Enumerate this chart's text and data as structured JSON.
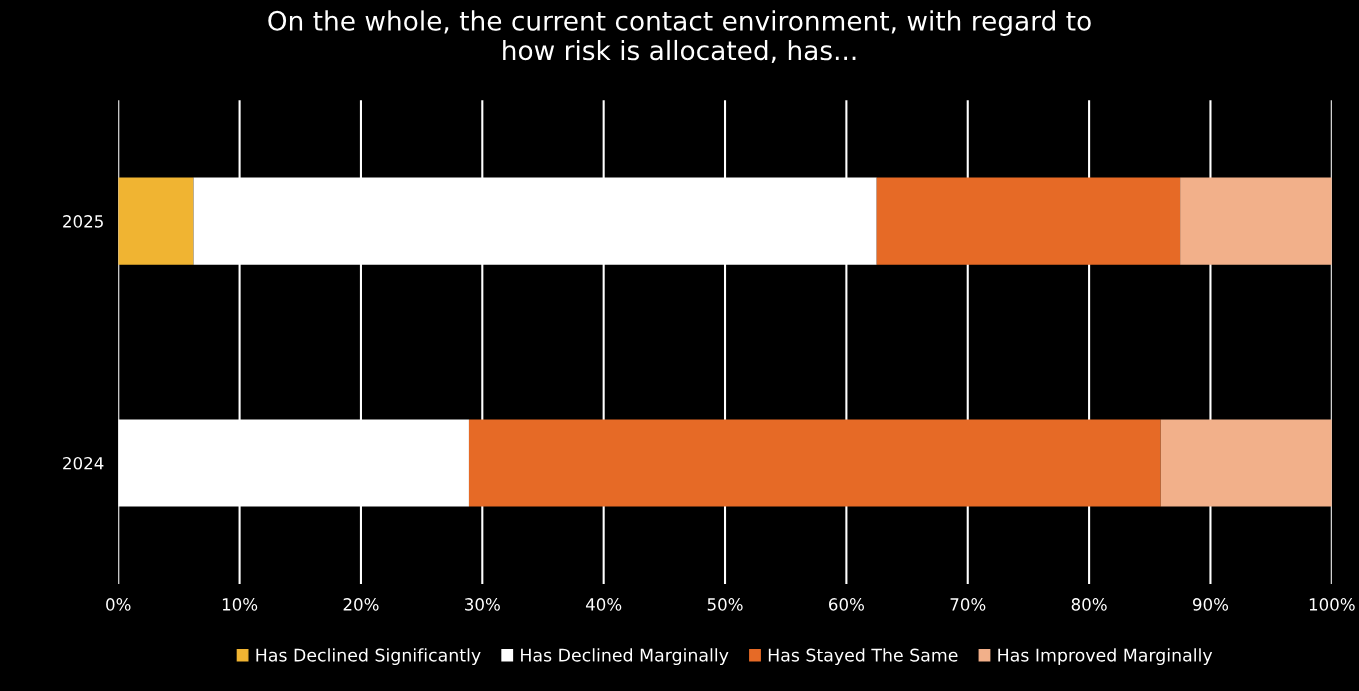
{
  "chart_data": {
    "type": "bar",
    "orientation": "horizontal",
    "stacked": true,
    "title": "On the whole, the current contact environment, with regard to\nhow risk is allocated, has...",
    "categories": [
      "2025",
      "2024"
    ],
    "series": [
      {
        "name": "Has Declined Significantly",
        "color": "#f0b432",
        "values": [
          6.2,
          0
        ]
      },
      {
        "name": "Has Declined Marginally",
        "color": "#ffffff",
        "values": [
          56.3,
          28.9
        ]
      },
      {
        "name": "Has Stayed The Same",
        "color": "#e66a26",
        "values": [
          25,
          57
        ]
      },
      {
        "name": "Has Improved Marginally",
        "color": "#f2b08a",
        "values": [
          12.5,
          14.1
        ]
      }
    ],
    "xlim": [
      0,
      100
    ],
    "xticks": [
      {
        "value": 0,
        "label": "0%"
      },
      {
        "value": 10,
        "label": "10%"
      },
      {
        "value": 20,
        "label": "20%"
      },
      {
        "value": 30,
        "label": "30%"
      },
      {
        "value": 40,
        "label": "40%"
      },
      {
        "value": 50,
        "label": "50%"
      },
      {
        "value": 60,
        "label": "60%"
      },
      {
        "value": 70,
        "label": "70%"
      },
      {
        "value": 80,
        "label": "80%"
      },
      {
        "value": 90,
        "label": "90%"
      },
      {
        "value": 100,
        "label": "100%"
      }
    ],
    "grid": "x",
    "legend": "bottom"
  }
}
